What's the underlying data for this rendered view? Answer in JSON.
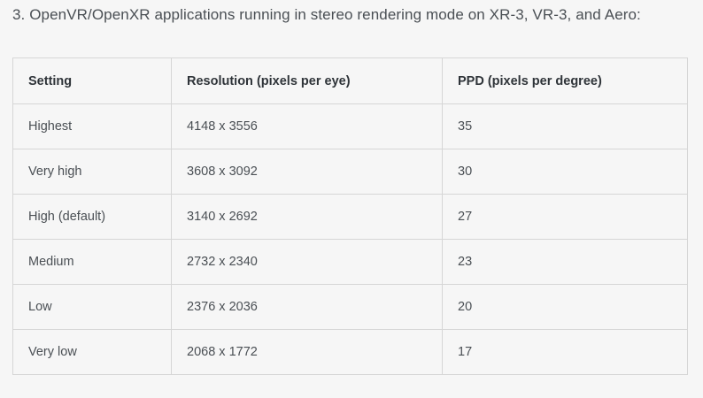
{
  "heading": "3. OpenVR/OpenXR applications running in stereo rendering mode on XR-3, VR-3, and Aero:",
  "table": {
    "headers": [
      "Setting",
      "Resolution (pixels per eye)",
      "PPD (pixels per degree)"
    ],
    "rows": [
      [
        "Highest",
        "4148 x 3556",
        "35"
      ],
      [
        "Very high",
        "3608 x 3092",
        "30"
      ],
      [
        "High (default)",
        "3140 x 2692",
        "27"
      ],
      [
        "Medium",
        "2732 x 2340",
        "23"
      ],
      [
        "Low",
        "2376 x 2036",
        "20"
      ],
      [
        "Very low",
        "2068 x 1772",
        "17"
      ]
    ]
  }
}
